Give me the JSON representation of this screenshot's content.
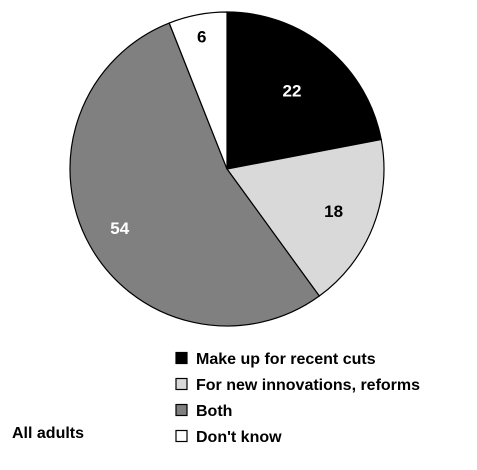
{
  "chart_data": {
    "type": "pie",
    "group_label": "All adults",
    "slices": [
      {
        "label": "Make up for recent cuts",
        "value": 22,
        "color": "#000000",
        "label_color": "#ffffff"
      },
      {
        "label": "For new innovations, reforms",
        "value": 18,
        "color": "#d9d9d9",
        "label_color": "#000000"
      },
      {
        "label": "Both",
        "value": 54,
        "color": "#808080",
        "label_color": "#ffffff"
      },
      {
        "label": "Don't know",
        "value": 6,
        "color": "#ffffff",
        "label_color": "#000000"
      }
    ],
    "legend_placement": "bottom-right"
  }
}
